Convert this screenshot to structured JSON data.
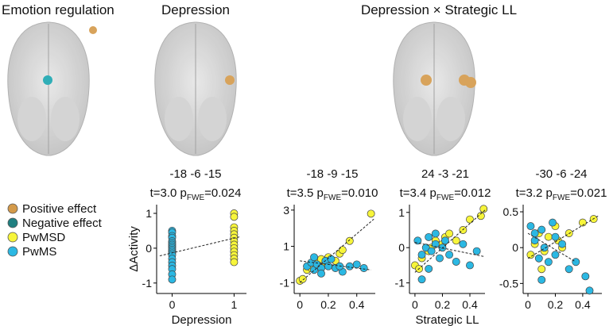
{
  "panels": [
    {
      "title": "Emotion regulation"
    },
    {
      "title": "Depression"
    },
    {
      "title": "Depression × Strategic LL"
    }
  ],
  "legend": [
    {
      "label": "Positive effect",
      "color": "#d49a4a"
    },
    {
      "label": "Negative effect",
      "color": "#1f7f80"
    }
  ],
  "chart_data": [
    {
      "type": "scatter",
      "title": "-18 -6 -15",
      "stat_parts": [
        "t=3.0 p",
        "FWE",
        "=0.024"
      ],
      "xlabel": "Depression",
      "ylabel": "ΔActivity",
      "xlim": [
        -0.25,
        1.2
      ],
      "xticks": [
        0,
        1
      ],
      "ylim": [
        -1.3,
        1.25
      ],
      "yticks": [
        -1,
        0,
        1
      ],
      "series": [
        {
          "name": "PwMSD",
          "color": "#f7f53a",
          "x": [
            1,
            1,
            1,
            1,
            1,
            1,
            1,
            1,
            1,
            1,
            1,
            1,
            1
          ],
          "values": [
            1.0,
            0.9,
            0.6,
            0.5,
            0.4,
            0.3,
            0.2,
            0.1,
            0,
            -0.1,
            -0.2,
            -0.3,
            -0.4
          ]
        },
        {
          "name": "PwMS",
          "color": "#2bb8e3",
          "x": [
            0,
            0,
            0,
            0,
            0,
            0,
            0,
            0,
            0,
            0,
            0,
            0,
            0,
            0,
            0,
            0,
            0,
            0,
            0
          ],
          "values": [
            0.5,
            0.45,
            0.35,
            0.3,
            0.2,
            0.15,
            0.1,
            0.05,
            0,
            -0.05,
            -0.1,
            -0.15,
            -0.2,
            -0.3,
            -0.4,
            -0.5,
            -0.6,
            -0.75,
            -0.9
          ]
        }
      ],
      "fit_lines": [
        {
          "x": [
            -0.2,
            1.1
          ],
          "y": [
            -0.22,
            0.33
          ]
        }
      ]
    },
    {
      "type": "scatter",
      "title": "-18 -9 -15",
      "stat_parts": [
        "t=3.5 p",
        "FWE",
        "=0.010"
      ],
      "xlim": [
        -0.04,
        0.53
      ],
      "xticks": [
        0,
        0.2,
        0.4
      ],
      "ylim": [
        -1.6,
        3.3
      ],
      "yticks": [
        -1,
        1,
        3
      ],
      "series": [
        {
          "name": "PwMSD",
          "color": "#f7f53a",
          "x": [
            0,
            0.02,
            0.05,
            0.1,
            0.12,
            0.15,
            0.2,
            0.25,
            0.28,
            0.3,
            0.35,
            0.5,
            0.18,
            0.08
          ],
          "values": [
            -0.9,
            -0.8,
            -0.3,
            0,
            0.2,
            0.3,
            0.4,
            0.2,
            0.6,
            0.8,
            1.3,
            2.8,
            0.1,
            -0.2
          ]
        },
        {
          "name": "PwMS",
          "color": "#2bb8e3",
          "x": [
            0.05,
            0.08,
            0.1,
            0.12,
            0.15,
            0.18,
            0.2,
            0.22,
            0.25,
            0.3,
            0.35,
            0.4,
            0.45,
            0.1,
            0.15,
            0.28
          ],
          "values": [
            -0.1,
            0.1,
            -0.3,
            0,
            -0.2,
            0.2,
            -0.1,
            0.3,
            -0.2,
            -0.4,
            -0.1,
            0,
            -0.2,
            0.4,
            -0.5,
            -0.1
          ]
        }
      ],
      "fit_lines": [
        {
          "x": [
            0,
            0.52
          ],
          "y": [
            -1.0,
            2.5
          ]
        },
        {
          "x": [
            0,
            0.5
          ],
          "y": [
            0.2,
            -0.3
          ]
        }
      ]
    },
    {
      "type": "scatter",
      "title": "24 -3 -21",
      "stat_parts": [
        "t=3.4 p",
        "FWE",
        "=0.012"
      ],
      "xlabel": "Strategic LL",
      "xlim": [
        -0.04,
        0.51
      ],
      "xticks": [
        0,
        0.2,
        0.4
      ],
      "ylim": [
        -1.3,
        1.22
      ],
      "yticks": [
        -1,
        0,
        1
      ],
      "series": [
        {
          "name": "PwMSD",
          "color": "#f7f53a",
          "x": [
            0,
            0.03,
            0.05,
            0.1,
            0.12,
            0.15,
            0.2,
            0.22,
            0.25,
            0.3,
            0.35,
            0.4,
            0.48,
            0.5
          ],
          "values": [
            -0.5,
            -0.6,
            -0.3,
            -0.1,
            0,
            0.2,
            0.1,
            0.3,
            0.4,
            0.2,
            0.5,
            0.8,
            0.9,
            1.1
          ]
        },
        {
          "name": "PwMS",
          "color": "#2bb8e3",
          "x": [
            0.02,
            0.05,
            0.08,
            0.1,
            0.12,
            0.15,
            0.18,
            0.2,
            0.22,
            0.25,
            0.3,
            0.35,
            0.4,
            0.45,
            0.1,
            0.15,
            0.05
          ],
          "values": [
            0.2,
            -0.2,
            0,
            0.3,
            -0.1,
            0.1,
            -0.3,
            0,
            0.2,
            -0.2,
            -0.4,
            0.1,
            -0.5,
            -0.1,
            -0.6,
            0.4,
            -0.9
          ]
        }
      ],
      "fit_lines": [
        {
          "x": [
            0,
            0.52
          ],
          "y": [
            -0.7,
            1.1
          ]
        },
        {
          "x": [
            0,
            0.5
          ],
          "y": [
            0.15,
            -0.25
          ]
        }
      ]
    },
    {
      "type": "scatter",
      "title": "-30 -6 -24",
      "stat_parts": [
        "t=3.2 p",
        "FWE",
        "=0.021"
      ],
      "xlim": [
        -0.035,
        0.54
      ],
      "xticks": [
        0,
        0.2,
        0.4
      ],
      "ylim": [
        -0.64,
        0.6
      ],
      "yticks": [
        -0.5,
        0,
        0.5
      ],
      "series": [
        {
          "name": "PwMSD",
          "color": "#f7f53a",
          "x": [
            0.02,
            0.05,
            0.1,
            0.15,
            0.2,
            0.22,
            0.25,
            0.3,
            0.4,
            0.48,
            0.12,
            0.08
          ],
          "values": [
            -0.1,
            0.05,
            -0.3,
            0.15,
            0.3,
            0.1,
            0,
            0.2,
            0.35,
            0.4,
            -0.05,
            0.2
          ]
        },
        {
          "name": "PwMS",
          "color": "#2bb8e3",
          "x": [
            0.02,
            0.05,
            0.08,
            0.1,
            0.12,
            0.15,
            0.18,
            0.2,
            0.25,
            0.3,
            0.35,
            0.42,
            0.45,
            0.1,
            0.05,
            0.2
          ],
          "values": [
            0.3,
            0.1,
            -0.15,
            0.25,
            0,
            -0.2,
            0.35,
            -0.1,
            0.05,
            -0.3,
            -0.2,
            -0.4,
            -0.6,
            -0.45,
            0.2,
            0.15
          ]
        }
      ],
      "fit_lines": [
        {
          "x": [
            0,
            0.52
          ],
          "y": [
            -0.15,
            0.45
          ]
        },
        {
          "x": [
            0,
            0.35
          ],
          "y": [
            0.2,
            -0.2
          ]
        }
      ]
    }
  ]
}
